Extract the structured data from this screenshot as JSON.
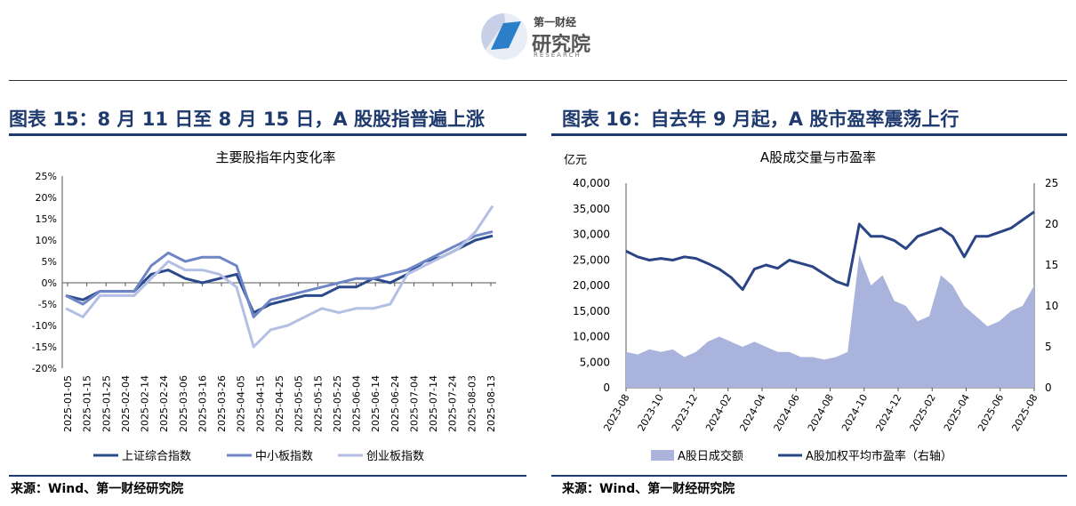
{
  "logo": {
    "line1": "第一财经",
    "line2": "研究院",
    "line3": "RESEARCH"
  },
  "left_panel": {
    "heading": "图表 15：8 月 11 日至 8 月 15 日，A 股股指普遍上涨",
    "source": "来源：Wind、第一财经研究院"
  },
  "right_panel": {
    "heading": "图表 16：自去年 9 月起，A 股市盈率震荡上行",
    "source": "来源：Wind、第一财经研究院"
  },
  "colors": {
    "title_blue": "#1f3a6e",
    "s1": "#2b4a8c",
    "s2": "#6f86c6",
    "s3": "#b3bfe3",
    "area": "#a9b3db",
    "line": "#2a4486"
  },
  "chart_data": [
    {
      "type": "line",
      "title": "主要股指年内变化率",
      "ylim": [
        -20,
        25
      ],
      "yticks": [
        "-20%",
        "-15%",
        "-10%",
        "-5%",
        "0%",
        "5%",
        "10%",
        "15%",
        "20%",
        "25%"
      ],
      "x_labels": [
        "2025-01-05",
        "2025-01-15",
        "2025-01-25",
        "2025-02-04",
        "2025-02-14",
        "2025-02-24",
        "2025-03-06",
        "2025-03-16",
        "2025-03-26",
        "2025-04-05",
        "2025-04-15",
        "2025-04-25",
        "2025-05-05",
        "2025-05-15",
        "2025-05-25",
        "2025-06-04",
        "2025-06-14",
        "2025-06-24",
        "2025-07-04",
        "2025-07-14",
        "2025-07-24",
        "2025-08-03",
        "2025-08-13"
      ],
      "legend_position": "bottom",
      "series": [
        {
          "name": "上证综合指数",
          "values": [
            -3,
            -4,
            -2,
            -2,
            -2,
            2,
            3,
            1,
            0,
            1,
            2,
            -7,
            -5,
            -4,
            -3,
            -3,
            -1,
            -1,
            1,
            0,
            2,
            5,
            6,
            8,
            10,
            11
          ]
        },
        {
          "name": "中小板指数",
          "values": [
            -3,
            -5,
            -2,
            -2,
            -2,
            4,
            7,
            5,
            6,
            6,
            4,
            -8,
            -4,
            -3,
            -2,
            -1,
            0,
            1,
            1,
            2,
            3,
            5,
            7,
            9,
            11,
            12
          ]
        },
        {
          "name": "创业板指数",
          "values": [
            -6,
            -8,
            -3,
            -3,
            -3,
            1,
            5,
            3,
            3,
            2,
            -1,
            -15,
            -11,
            -10,
            -8,
            -6,
            -7,
            -6,
            -6,
            -5,
            2,
            4,
            6,
            8,
            12,
            18
          ]
        }
      ]
    },
    {
      "type": "area",
      "title": "A股成交量与市盈率",
      "y_unit": "亿元",
      "ylim": [
        0,
        40000
      ],
      "yticks": [
        "0",
        "5,000",
        "10,000",
        "15,000",
        "20,000",
        "25,000",
        "30,000",
        "35,000",
        "40,000"
      ],
      "y2lim": [
        0,
        25
      ],
      "y2ticks": [
        "0",
        "5",
        "10",
        "15",
        "20",
        "25"
      ],
      "x_labels": [
        "2023-08",
        "2023-10",
        "2023-12",
        "2024-02",
        "2024-04",
        "2024-06",
        "2024-08",
        "2024-10",
        "2024-12",
        "2025-02",
        "2025-04",
        "2025-06",
        "2025-08"
      ],
      "legend_position": "bottom",
      "series": [
        {
          "name": "A股日成交额",
          "values": [
            7000,
            6500,
            7500,
            7000,
            7500,
            6000,
            7000,
            9000,
            10000,
            9000,
            8000,
            9000,
            8000,
            7000,
            7000,
            6000,
            6000,
            5500,
            6000,
            7000,
            26000,
            20000,
            22000,
            17000,
            16000,
            13000,
            14000,
            22000,
            20000,
            16000,
            14000,
            12000,
            13000,
            15000,
            16000,
            20000
          ]
        },
        {
          "name": "A股加权平均市盈率（右轴）",
          "values": [
            16.7,
            16.0,
            15.6,
            15.8,
            15.6,
            16.0,
            15.8,
            15.2,
            14.5,
            13.5,
            12.0,
            14.5,
            15.0,
            14.6,
            15.6,
            15.2,
            14.8,
            13.9,
            13.0,
            12.5,
            20.0,
            18.5,
            18.5,
            18.0,
            17.0,
            18.5,
            19.0,
            19.5,
            18.5,
            16.0,
            18.5,
            18.5,
            19.0,
            19.5,
            20.5,
            21.5
          ]
        }
      ]
    }
  ]
}
